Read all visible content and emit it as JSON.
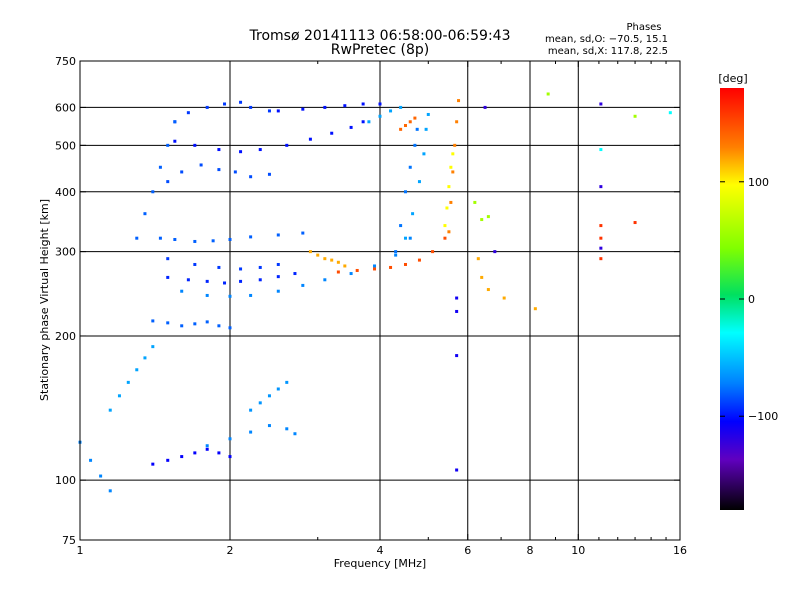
{
  "chart_data": {
    "type": "scatter",
    "title": "Tromsø 20141113 06:58:00-06:59:43",
    "subtitle": "RwPretec (8p)",
    "xlabel": "Frequency [MHz]",
    "ylabel": "Stationary phase Virtual Height [km]",
    "x_scale": "log",
    "y_scale": "log",
    "xlim": [
      1,
      16
    ],
    "ylim": [
      75,
      750
    ],
    "x_ticks": [
      1,
      2,
      4,
      6,
      8,
      10,
      16
    ],
    "x_ticklabels": [
      "1",
      "2",
      "4",
      "6",
      "8",
      "10",
      "16"
    ],
    "x_minor_ticks": [
      3,
      5,
      7,
      9,
      11,
      12,
      13,
      14,
      15
    ],
    "y_ticks": [
      75,
      100,
      200,
      300,
      400,
      500,
      600,
      750
    ],
    "y_ticklabels": [
      "75",
      "100",
      "200",
      "300",
      "400",
      "500",
      "600",
      "750"
    ],
    "grid_x": [
      2,
      4,
      6,
      8,
      10
    ],
    "grid_y": [
      100,
      200,
      300,
      400,
      500,
      600
    ],
    "stats": {
      "heading": "Phases",
      "line_o": "mean, sd,O: −70.5, 15.1",
      "line_x": "mean, sd,X: 117.8, 22.5"
    },
    "colorbar": {
      "label": "[deg]",
      "range": [
        -180,
        180
      ],
      "ticks": [
        100,
        0,
        -100
      ],
      "ticklabels": [
        "100",
        "0",
        "−100"
      ]
    },
    "traces": [
      {
        "name": "",
        "phase": -100,
        "x": [
          1.55,
          1.7,
          1.9,
          2.1,
          2.3,
          2.6,
          2.9,
          3.2,
          3.5,
          3.7
        ],
        "y": [
          510,
          500,
          490,
          485,
          490,
          500,
          515,
          530,
          545,
          560
        ]
      },
      {
        "name": "",
        "phase": -90,
        "x": [
          1.55,
          1.65,
          1.8,
          1.95,
          2.1,
          2.2,
          2.4
        ],
        "y": [
          560,
          585,
          600,
          610,
          615,
          600,
          590
        ]
      },
      {
        "name": "",
        "phase": -85,
        "x": [
          1.5,
          1.6,
          1.75,
          1.9,
          2.05,
          2.2,
          2.4
        ],
        "y": [
          420,
          440,
          455,
          445,
          440,
          430,
          435
        ]
      },
      {
        "name": "",
        "phase": -100,
        "x": [
          2.5,
          2.8,
          3.1,
          3.4,
          3.7,
          4.0
        ],
        "y": [
          590,
          595,
          600,
          605,
          610,
          610
        ]
      },
      {
        "name": "",
        "phase": -70,
        "x": [
          1.6,
          1.8,
          2.0,
          2.2,
          2.5,
          2.8,
          3.1,
          3.5,
          3.9,
          4.3,
          4.6
        ],
        "y": [
          248,
          243,
          242,
          243,
          248,
          255,
          262,
          270,
          280,
          295,
          320
        ]
      },
      {
        "name": "",
        "phase": -95,
        "x": [
          1.5,
          1.65,
          1.8,
          1.95,
          2.1,
          2.3,
          2.5,
          2.7
        ],
        "y": [
          265,
          262,
          260,
          258,
          260,
          262,
          266,
          270
        ]
      },
      {
        "name": "",
        "phase": -90,
        "x": [
          1.5,
          1.7,
          1.9,
          2.1,
          2.3,
          2.5
        ],
        "y": [
          290,
          282,
          278,
          276,
          278,
          282
        ]
      },
      {
        "name": "",
        "phase": -80,
        "x": [
          1.45,
          1.55,
          1.7,
          1.85,
          2.0,
          2.2,
          2.5,
          2.8
        ],
        "y": [
          320,
          318,
          315,
          316,
          318,
          322,
          325,
          328
        ]
      },
      {
        "name": "",
        "phase": -60,
        "x": [
          4.5,
          4.65,
          4.8,
          4.9,
          4.95,
          5.0
        ],
        "y": [
          320,
          360,
          420,
          480,
          540,
          580
        ]
      },
      {
        "name": "",
        "phase": -75,
        "x": [
          4.3,
          4.4,
          4.5,
          4.6,
          4.7,
          4.75
        ],
        "y": [
          300,
          340,
          400,
          450,
          500,
          540
        ]
      },
      {
        "name": "",
        "phase": -60,
        "x": [
          3.8,
          4.0,
          4.2,
          4.4
        ],
        "y": [
          560,
          575,
          590,
          600
        ]
      },
      {
        "name": "",
        "phase": 150,
        "x": [
          3.3,
          3.6,
          3.9,
          4.2,
          4.5,
          4.8,
          5.1,
          5.4
        ],
        "y": [
          272,
          274,
          276,
          278,
          282,
          288,
          300,
          320
        ]
      },
      {
        "name": "",
        "phase": 120,
        "x": [
          2.9,
          3.0,
          3.1,
          3.2,
          3.3,
          3.4
        ],
        "y": [
          300,
          295,
          290,
          288,
          285,
          280
        ]
      },
      {
        "name": "",
        "phase": 130,
        "x": [
          5.5,
          5.55,
          5.6,
          5.65,
          5.7,
          5.75
        ],
        "y": [
          330,
          380,
          440,
          500,
          560,
          620
        ]
      },
      {
        "name": "",
        "phase": 100,
        "x": [
          5.4,
          5.45,
          5.5,
          5.55,
          5.6
        ],
        "y": [
          340,
          370,
          410,
          450,
          480
        ]
      },
      {
        "name": "",
        "phase": 140,
        "x": [
          4.4,
          4.5,
          4.6,
          4.7
        ],
        "y": [
          540,
          550,
          560,
          570
        ]
      },
      {
        "name": "",
        "phase": -80,
        "x": [
          1.3,
          1.35,
          1.4,
          1.45,
          1.5,
          1.55
        ],
        "y": [
          320,
          360,
          400,
          450,
          500,
          560
        ]
      },
      {
        "name": "",
        "phase": -80,
        "x": [
          1.4,
          1.5,
          1.6,
          1.7,
          1.8,
          1.9,
          2.0
        ],
        "y": [
          215,
          213,
          210,
          212,
          214,
          210,
          208
        ]
      },
      {
        "name": "",
        "phase": -105,
        "x": [
          1.4,
          1.5,
          1.6,
          1.7,
          1.8,
          1.9,
          2.0
        ],
        "y": [
          108,
          110,
          112,
          114,
          116,
          114,
          112
        ]
      },
      {
        "name": "",
        "phase": -70,
        "x": [
          1.8,
          2.0,
          2.2,
          2.4,
          2.6,
          2.7
        ],
        "y": [
          118,
          122,
          126,
          130,
          128,
          125
        ]
      },
      {
        "name": "",
        "phase": -60,
        "x": [
          1.15,
          1.2,
          1.25,
          1.3,
          1.35,
          1.4
        ],
        "y": [
          140,
          150,
          160,
          170,
          180,
          190
        ]
      },
      {
        "name": "",
        "phase": -65,
        "x": [
          2.2,
          2.3,
          2.4,
          2.5,
          2.6
        ],
        "y": [
          140,
          145,
          150,
          155,
          160
        ]
      },
      {
        "name": "",
        "phase": -70,
        "x": [
          1.0,
          1.05,
          1.1,
          1.15
        ],
        "y": [
          120,
          110,
          102,
          95
        ]
      },
      {
        "name": "",
        "phase": -110,
        "x": [
          5.7,
          5.7,
          5.7,
          5.7
        ],
        "y": [
          240,
          225,
          182,
          105
        ]
      },
      {
        "name": "",
        "phase": 120,
        "x": [
          6.3,
          6.4,
          6.6,
          7.1,
          8.2
        ],
        "y": [
          290,
          265,
          250,
          240,
          228
        ]
      },
      {
        "name": "",
        "phase": 60,
        "x": [
          6.2,
          6.4,
          6.6,
          8.7,
          13.0
        ],
        "y": [
          380,
          350,
          355,
          640,
          575
        ]
      },
      {
        "name": "",
        "phase": 160,
        "x": [
          11.1,
          11.1,
          11.1,
          13.0
        ],
        "y": [
          340,
          320,
          290,
          345
        ]
      },
      {
        "name": "",
        "phase": -120,
        "x": [
          6.5,
          6.8,
          11.1,
          11.1,
          11.1
        ],
        "y": [
          600,
          300,
          610,
          410,
          305
        ]
      },
      {
        "name": "",
        "phase": -30,
        "x": [
          11.1,
          15.3
        ],
        "y": [
          490,
          585
        ]
      }
    ]
  }
}
